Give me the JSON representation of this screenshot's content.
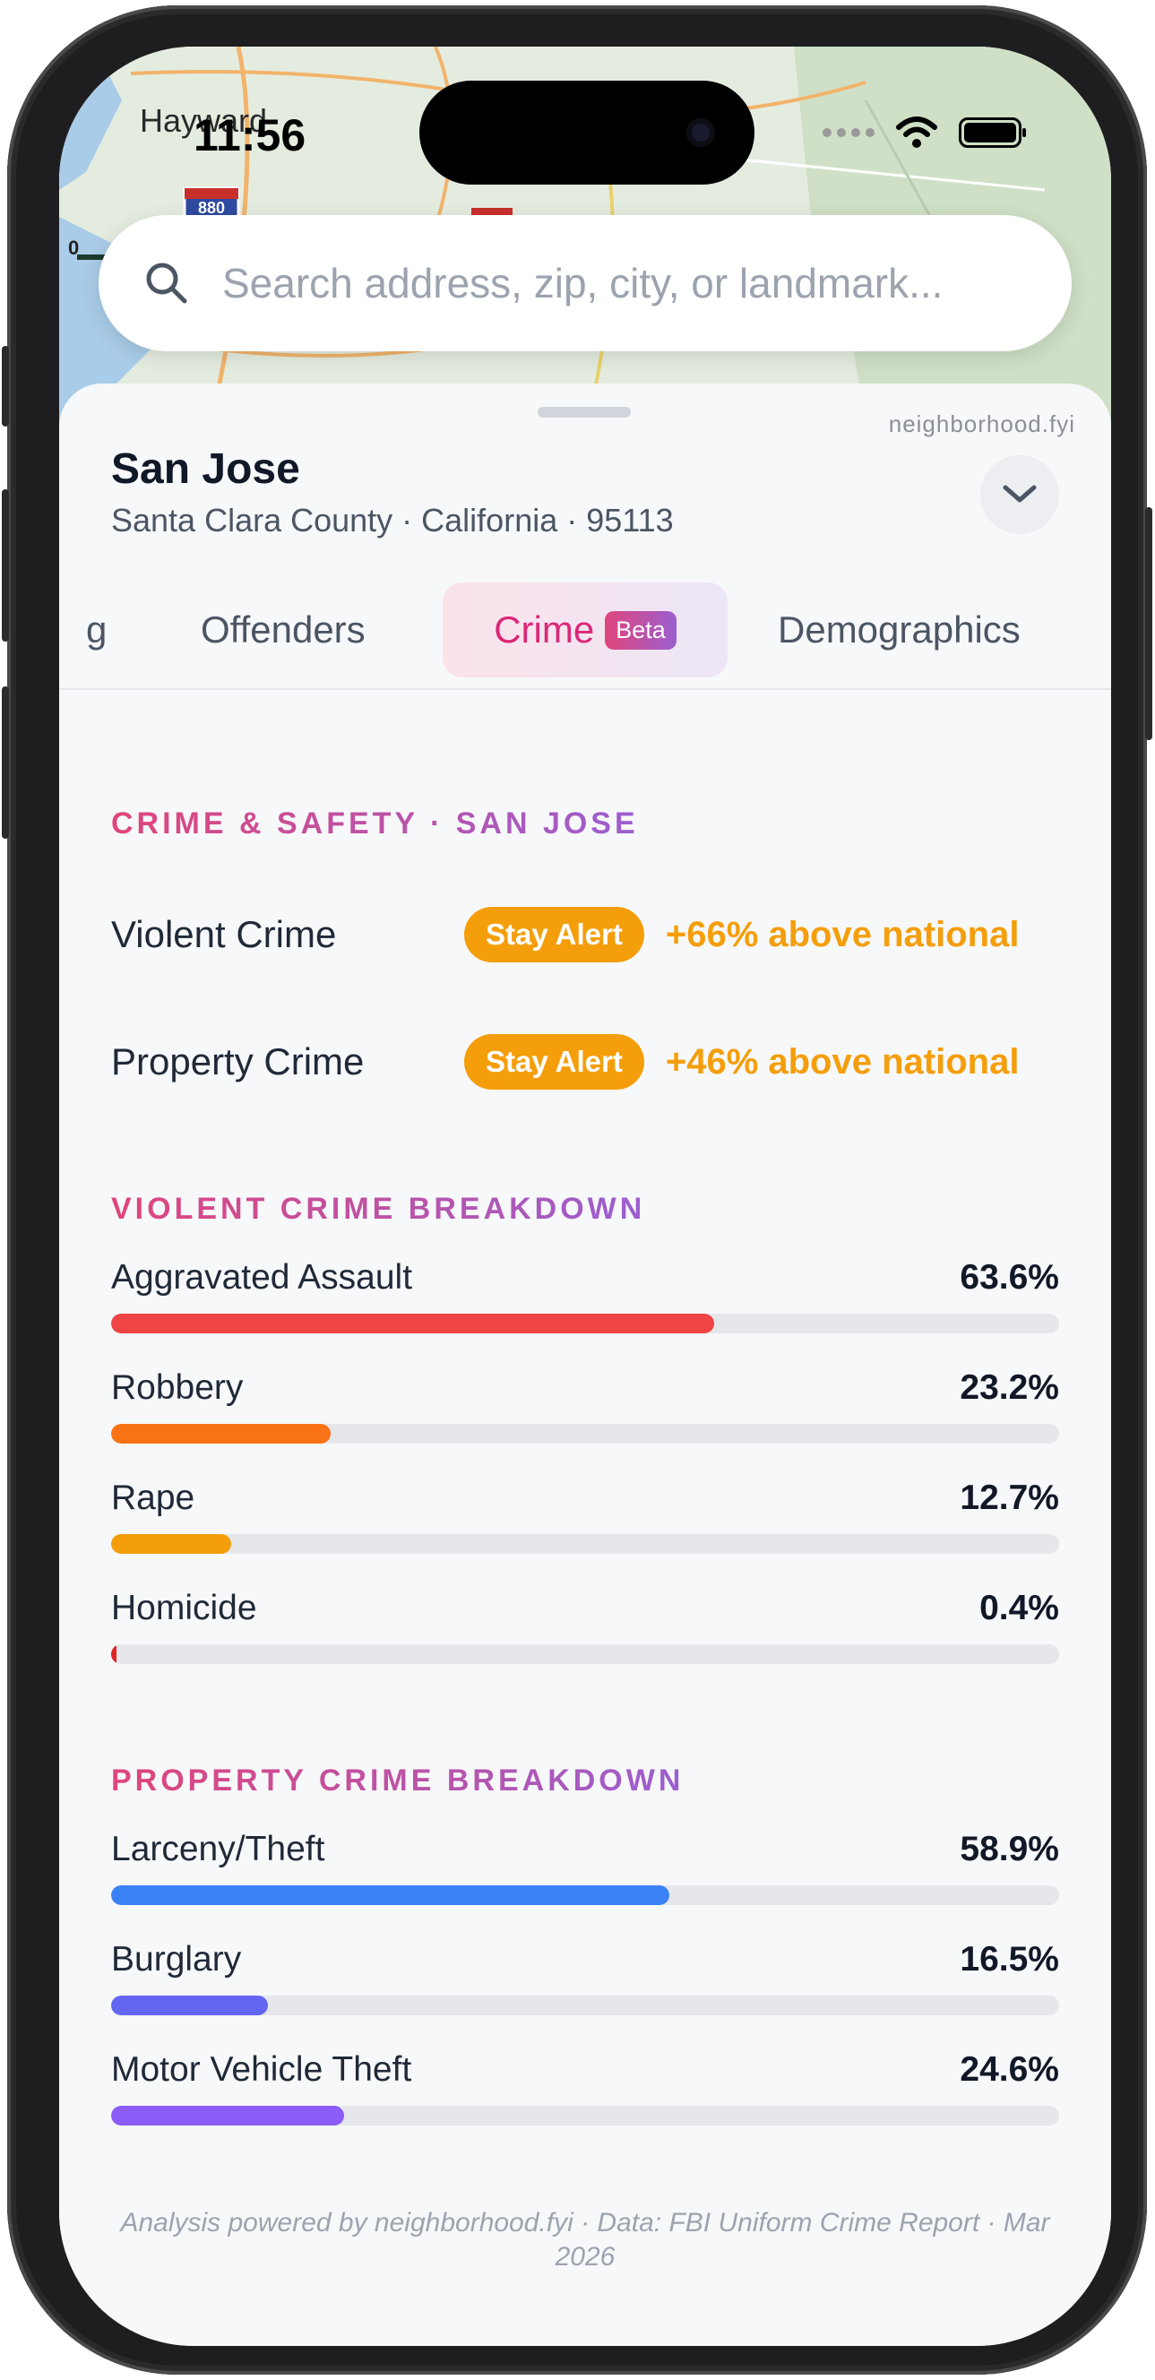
{
  "status": {
    "time": "11:56"
  },
  "map": {
    "place_label": "Hayward",
    "highway_label": "880",
    "scale_zero": "0"
  },
  "search": {
    "placeholder": "Search address, zip, city, or landmark..."
  },
  "header": {
    "brand": "neighborhood.fyi",
    "city": "San Jose",
    "subline": "Santa Clara County · California · 95113"
  },
  "tabs": {
    "partial": "g",
    "offenders": "Offenders",
    "crime": "Crime",
    "crime_badge": "Beta",
    "demographics": "Demographics"
  },
  "summary": {
    "title": "CRIME & SAFETY · SAN JOSE",
    "rows": [
      {
        "label": "Violent Crime",
        "badge": "Stay Alert",
        "delta": "+66% above national"
      },
      {
        "label": "Property Crime",
        "badge": "Stay Alert",
        "delta": "+46% above national"
      }
    ]
  },
  "violent": {
    "title": "VIOLENT CRIME BREAKDOWN",
    "rows": [
      {
        "label": "Aggravated Assault",
        "value": "63.6%",
        "pct": 63.6,
        "color": "#ef4444"
      },
      {
        "label": "Robbery",
        "value": "23.2%",
        "pct": 23.2,
        "color": "#f97316"
      },
      {
        "label": "Rape",
        "value": "12.7%",
        "pct": 12.7,
        "color": "#f59e0b"
      },
      {
        "label": "Homicide",
        "value": "0.4%",
        "pct": 0.4,
        "color": "#dc2626"
      }
    ]
  },
  "property": {
    "title": "PROPERTY CRIME BREAKDOWN",
    "rows": [
      {
        "label": "Larceny/Theft",
        "value": "58.9%",
        "pct": 58.9,
        "color": "#3b82f6"
      },
      {
        "label": "Burglary",
        "value": "16.5%",
        "pct": 16.5,
        "color": "#6366f1"
      },
      {
        "label": "Motor Vehicle Theft",
        "value": "24.6%",
        "pct": 24.6,
        "color": "#8b5cf6"
      }
    ]
  },
  "footer": {
    "text": "Analysis powered by neighborhood.fyi · Data: FBI Uniform Crime Report · Mar 2026"
  }
}
